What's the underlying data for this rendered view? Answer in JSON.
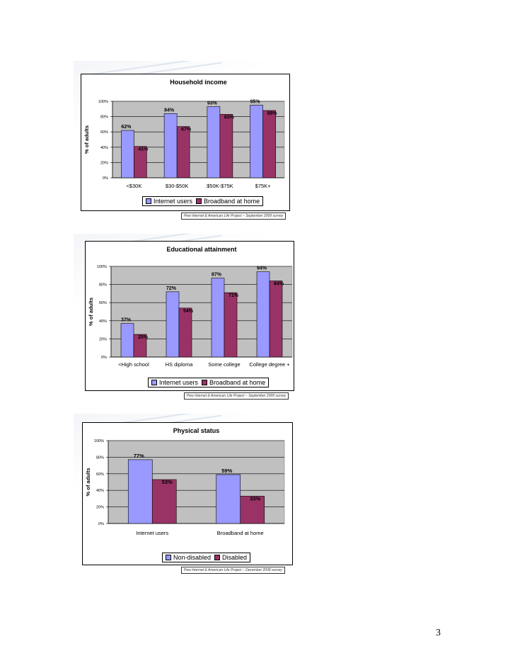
{
  "colors": {
    "internet": "#9999ff",
    "broadband": "#993366",
    "plot_bg": "#c0c0c0"
  },
  "page_number": "3",
  "slides": [
    {
      "source": "Pew Internet & American Life Project – September 2009 survey"
    },
    {
      "source": "Pew Internet & American Life Project – September 2009 survey"
    },
    {
      "source": "Pew Internet & American Life Project – December 2008 survey"
    }
  ],
  "chart_data": [
    {
      "type": "bar",
      "title": "Household income",
      "ylabel": "% of adults",
      "ylim": [
        0,
        100
      ],
      "yticks": [
        "0%",
        "20%",
        "40%",
        "60%",
        "80%",
        "100%"
      ],
      "categories": [
        "<$30K",
        "$30-$50K",
        "$50K-$75K",
        "$75K+"
      ],
      "series": [
        {
          "name": "Internet users",
          "values": [
            62,
            84,
            93,
            95
          ],
          "labels": [
            "62%",
            "84%",
            "93%",
            "95%"
          ]
        },
        {
          "name": "Broadband at home",
          "values": [
            41,
            67,
            83,
            88
          ],
          "labels": [
            "41%",
            "67%",
            "83%",
            "88%"
          ]
        }
      ],
      "legend": "bottom"
    },
    {
      "type": "bar",
      "title": "Educational attainment",
      "ylabel": "% of adults",
      "ylim": [
        0,
        100
      ],
      "yticks": [
        "0%",
        "20%",
        "40%",
        "60%",
        "80%",
        "100%"
      ],
      "categories": [
        "<High school",
        "HS diploma",
        "Some college",
        "College degree +"
      ],
      "series": [
        {
          "name": "Internet users",
          "values": [
            37,
            72,
            87,
            94
          ],
          "labels": [
            "37%",
            "72%",
            "87%",
            "94%"
          ]
        },
        {
          "name": "Broadband at home",
          "values": [
            25,
            54,
            71,
            84
          ],
          "labels": [
            "25%",
            "54%",
            "71%",
            "84%"
          ]
        }
      ],
      "legend": "bottom"
    },
    {
      "type": "bar",
      "title": "Physical status",
      "ylabel": "% of adults",
      "ylim": [
        0,
        100
      ],
      "yticks": [
        "0%",
        "20%",
        "40%",
        "60%",
        "80%",
        "100%"
      ],
      "categories": [
        "Internet users",
        "Broadband at home"
      ],
      "series": [
        {
          "name": "Non-disabled",
          "values": [
            77,
            59
          ],
          "labels": [
            "77%",
            "59%"
          ]
        },
        {
          "name": "Disabled",
          "values": [
            53,
            33
          ],
          "labels": [
            "53%",
            "33%"
          ]
        }
      ],
      "legend": "bottom"
    }
  ]
}
